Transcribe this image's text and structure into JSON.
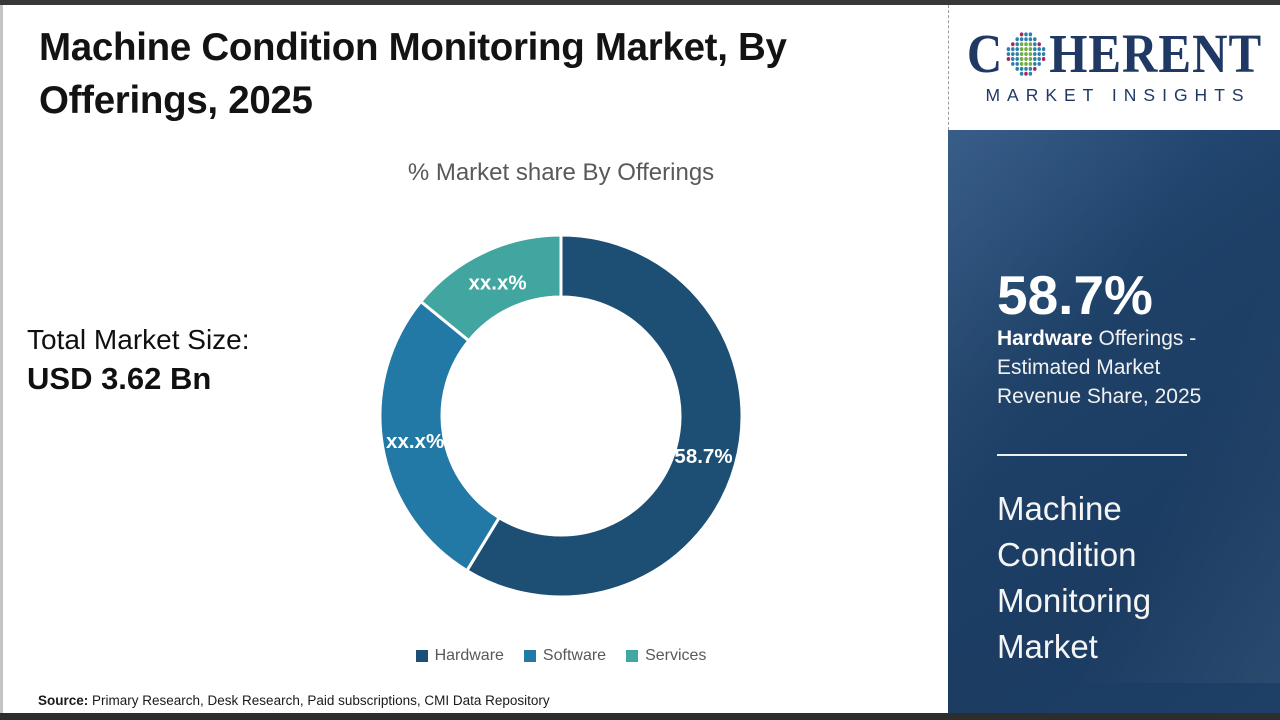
{
  "header": {
    "title": "Machine Condition Monitoring Market, By Offerings, 2025"
  },
  "total_market": {
    "label": "Total Market Size:",
    "value": "USD 3.62 Bn"
  },
  "chart_data": {
    "type": "pie",
    "donut": true,
    "title": "% Market share By Offerings",
    "categories": [
      "Hardware",
      "Software",
      "Services"
    ],
    "values": [
      58.7,
      27.2,
      14.1
    ],
    "slice_labels": [
      "58.7%",
      "xx.x%",
      "xx.x%"
    ],
    "colors": [
      "#1d4e74",
      "#2279a5",
      "#40a69f"
    ],
    "legend_position": "bottom"
  },
  "source": {
    "label": "Source:",
    "text": " Primary Research, Desk Research, Paid subscriptions, CMI Data Repository"
  },
  "sidebar": {
    "logo_word_start": "C",
    "logo_word_end": "HERENT",
    "logo_subtitle": "MARKET INSIGHTS",
    "stat_value": "58.7%",
    "stat_desc_bold": "Hardware",
    "stat_desc_rest": " Offerings - Estimated Market Revenue Share, 2025",
    "market_name": "Machine Condition Monitoring Market",
    "panel_color": "#1e4066"
  }
}
